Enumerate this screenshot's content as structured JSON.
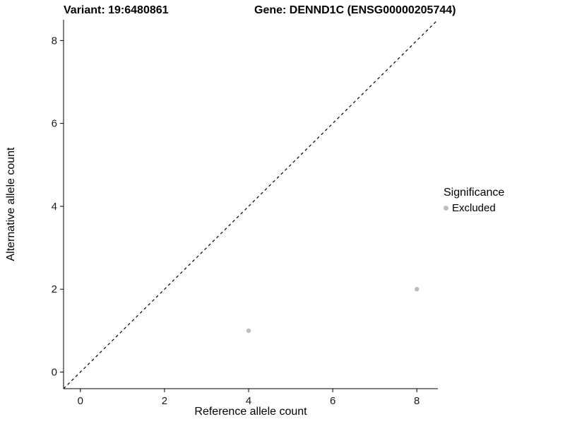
{
  "header": {
    "variant_title": "Variant: 19:6480861",
    "gene_title": "Gene: DENND1C (ENSG00000205744)"
  },
  "chart_data": {
    "type": "scatter",
    "title": "Variant: 19:6480861 — Gene: DENND1C (ENSG00000205744)",
    "xlabel": "Reference allele count",
    "ylabel": "Alternative allele count",
    "xlim": [
      -0.4,
      8.5
    ],
    "ylim": [
      -0.4,
      8.5
    ],
    "xticks": [
      0,
      2,
      4,
      6,
      8
    ],
    "yticks": [
      0,
      2,
      4,
      6,
      8
    ],
    "grid": false,
    "identity_line": {
      "style": "dashed",
      "slope": 1,
      "intercept": 0,
      "color": "#000000"
    },
    "series": [
      {
        "name": "Excluded",
        "color": "#bdbdbd",
        "points": [
          {
            "x": 4,
            "y": 1
          },
          {
            "x": 8,
            "y": 2
          }
        ]
      }
    ],
    "legend": {
      "title": "Significance",
      "position": "right",
      "entries": [
        {
          "label": "Excluded",
          "color": "#bdbdbd",
          "marker": "circle"
        }
      ]
    }
  }
}
